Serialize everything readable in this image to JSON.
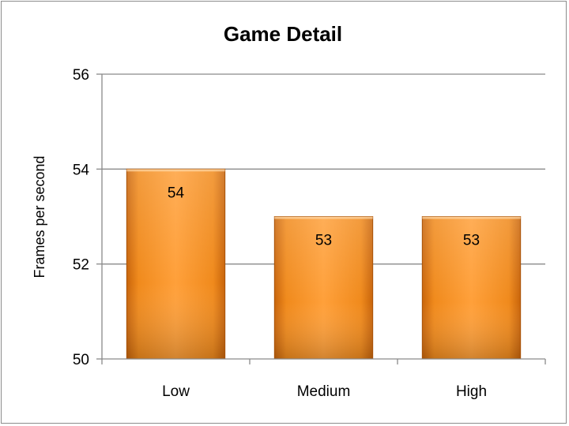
{
  "chart_data": {
    "type": "bar",
    "title": "Game Detail",
    "xlabel": "",
    "ylabel": "Frames per second",
    "categories": [
      "Low",
      "Medium",
      "High"
    ],
    "values": [
      54,
      53,
      53
    ],
    "data_labels": [
      "54",
      "53",
      "53"
    ],
    "ylim": [
      50,
      56
    ],
    "yticks": [
      50,
      52,
      54,
      56
    ],
    "ytick_labels": [
      "50",
      "52",
      "54",
      "56"
    ],
    "grid": true,
    "legend": "none",
    "bar_color": "#f28c1e"
  }
}
